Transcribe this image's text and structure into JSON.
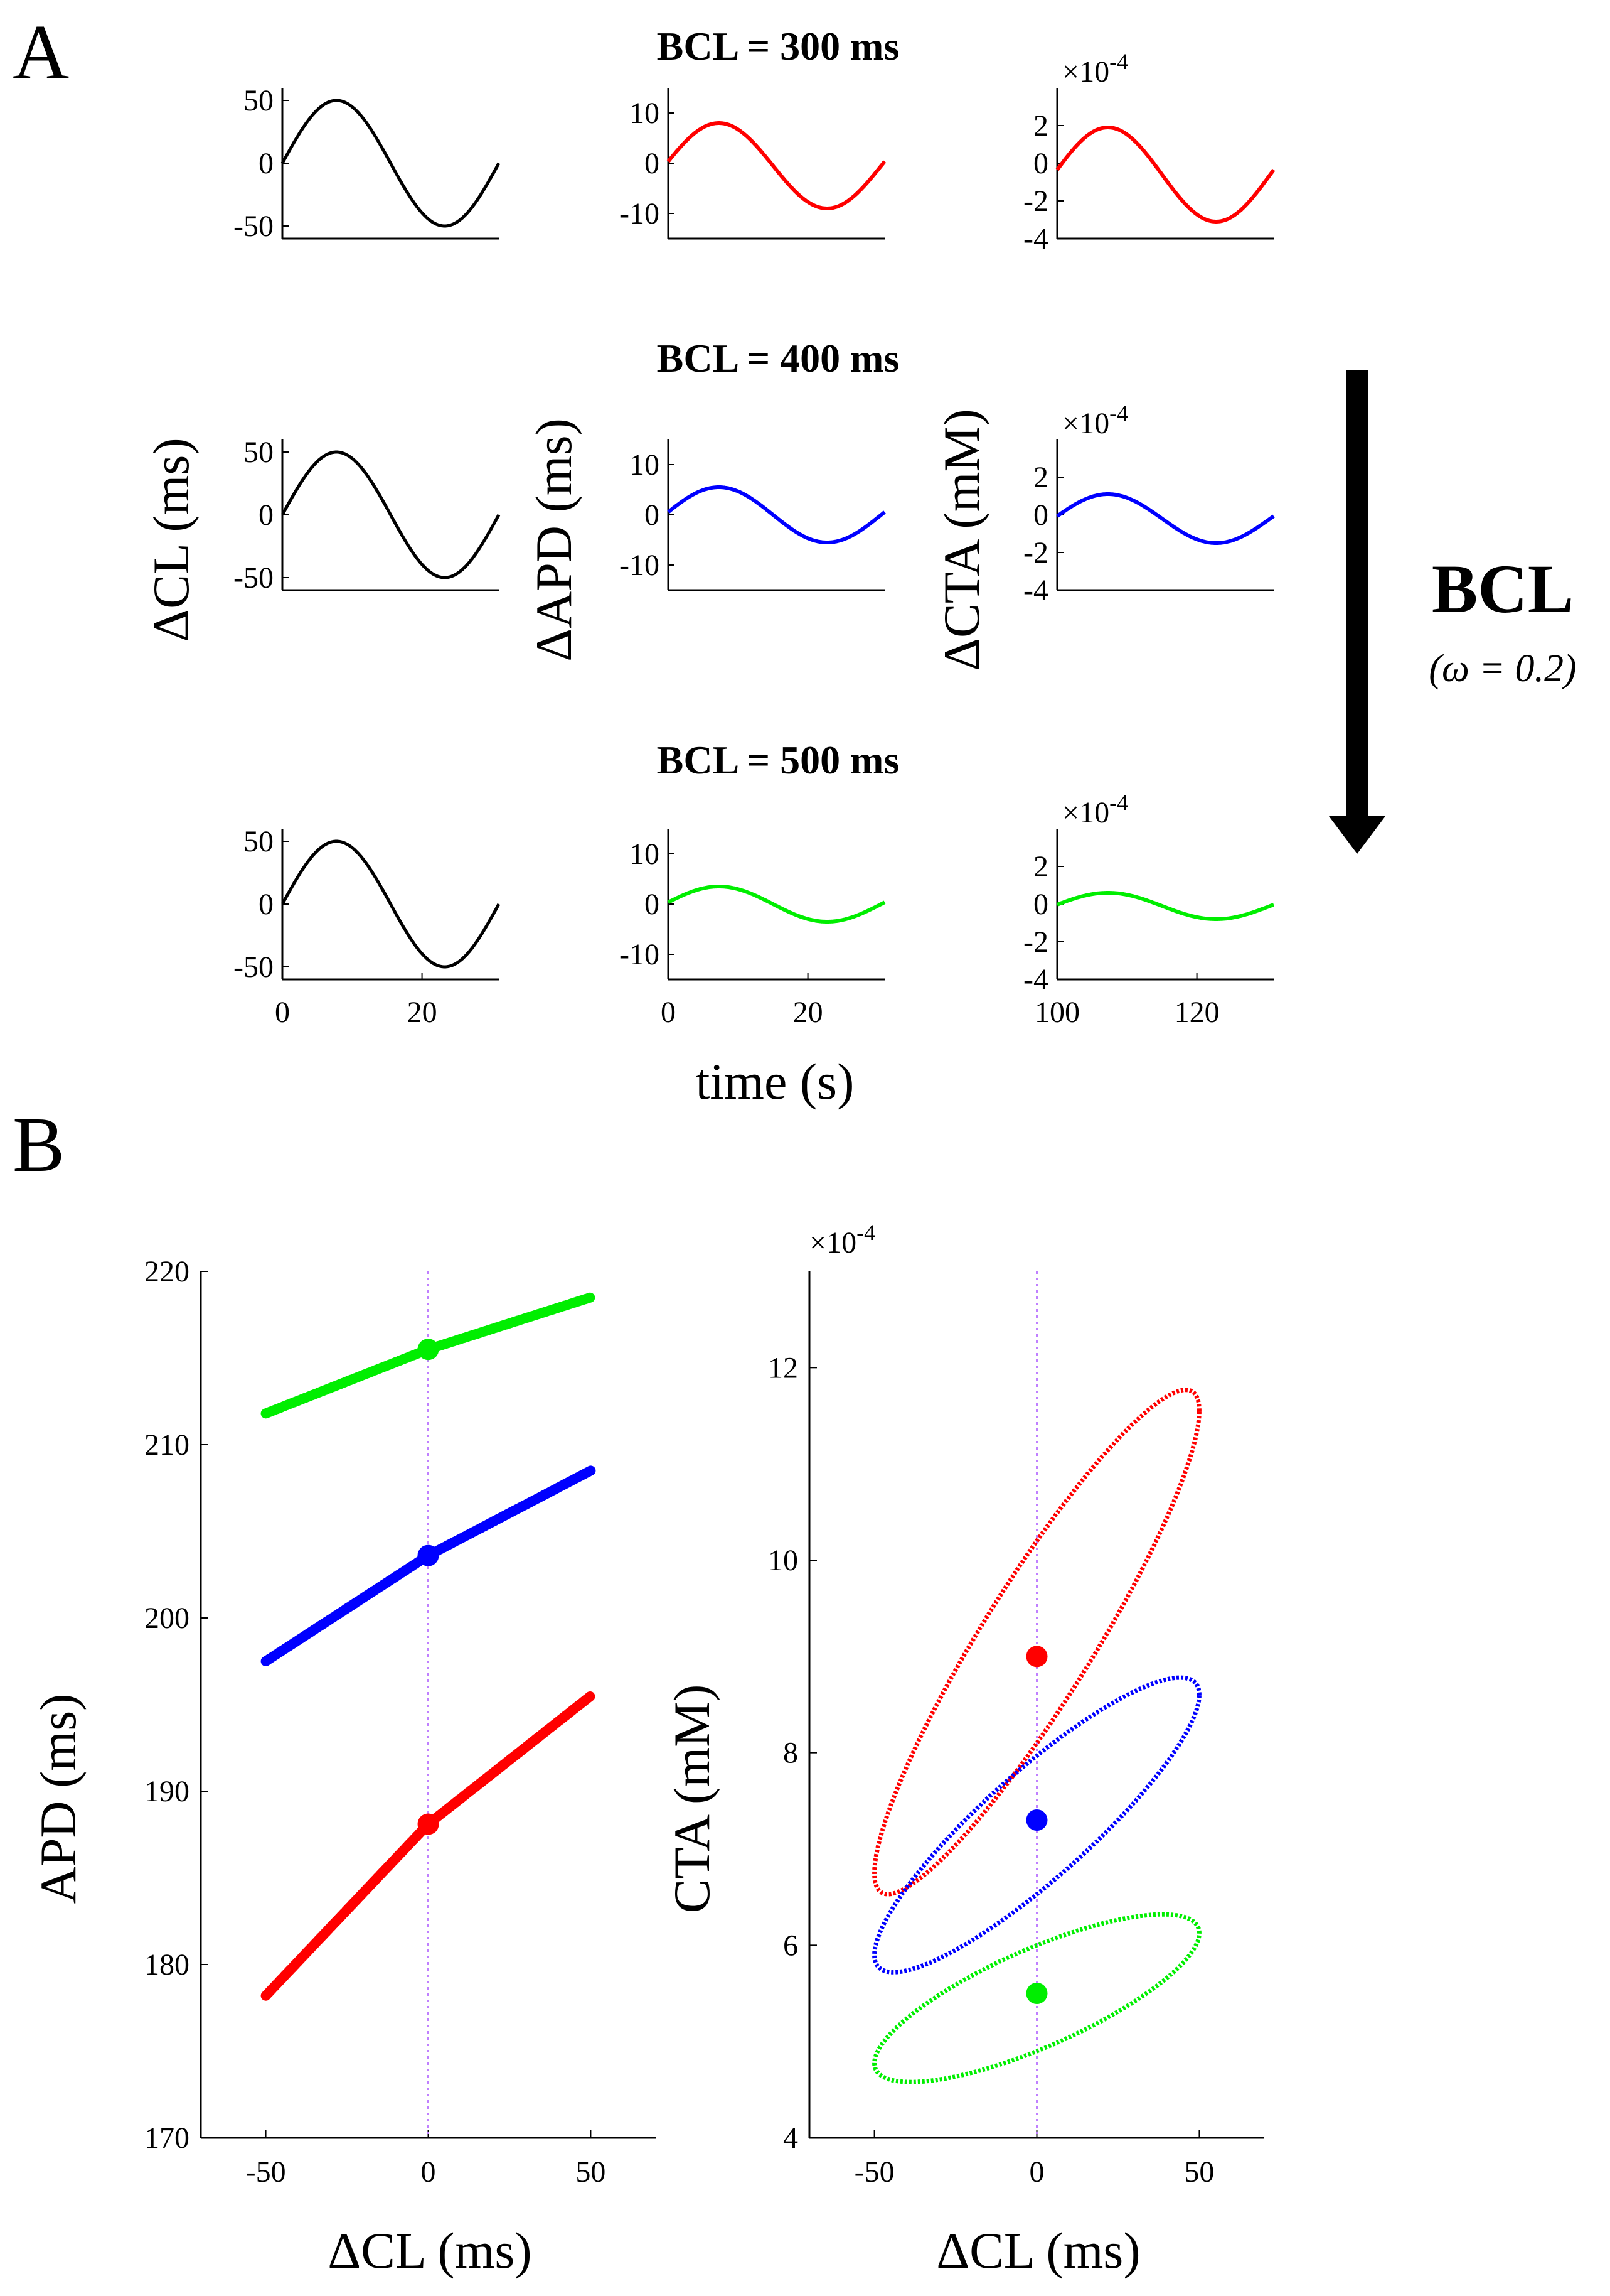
{
  "figure": {
    "panel_a_label": "A",
    "panel_b_label": "B",
    "arrow_label": "BCL",
    "omega_label": "(ω = 0.2)",
    "colors": {
      "black": "#000000",
      "red": "#ff0000",
      "blue": "#0000ff",
      "green": "#00ee00",
      "guide": "#c080ff"
    }
  },
  "panel_a": {
    "row_titles": [
      "BCL = 300 ms",
      "BCL = 400 ms",
      "BCL = 500 ms"
    ],
    "ylabels": [
      "ΔCL (ms)",
      "ΔAPD (ms)",
      "ΔCTA (mM)"
    ],
    "xlabel": "time (s)",
    "exponent_label": "×10",
    "exponent_power": "-4",
    "columns": [
      {
        "xlim": [
          0,
          31
        ],
        "ylim": [
          -60,
          60
        ],
        "yticks": [
          50,
          0,
          -50
        ],
        "xticks": [
          0,
          20
        ]
      },
      {
        "xlim": [
          0,
          31
        ],
        "ylim": [
          -15,
          15
        ],
        "yticks": [
          10,
          0,
          -10
        ],
        "xticks": [
          0,
          20
        ]
      },
      {
        "xlim": [
          100,
          131
        ],
        "ylim": [
          -4,
          4
        ],
        "yticks": [
          2,
          0,
          -2,
          -4
        ],
        "xticks": [
          100,
          120
        ]
      }
    ],
    "traces": [
      [
        {
          "color": "#000000",
          "amplitude": 50,
          "offset": 0,
          "phase": 0
        },
        {
          "color": "#ff0000",
          "amplitude": 8.5,
          "offset": -0.5,
          "phase": 0.1
        },
        {
          "color": "#ff0000",
          "amplitude": 2.5,
          "offset": -0.6,
          "phase": 0.1
        }
      ],
      [
        {
          "color": "#000000",
          "amplitude": 50,
          "offset": 0,
          "phase": 0
        },
        {
          "color": "#0000ff",
          "amplitude": 5.5,
          "offset": 0,
          "phase": 0.1
        },
        {
          "color": "#0000ff",
          "amplitude": 1.3,
          "offset": -0.2,
          "phase": 0.1
        }
      ],
      [
        {
          "color": "#000000",
          "amplitude": 50,
          "offset": 0,
          "phase": 0
        },
        {
          "color": "#00ee00",
          "amplitude": 3.5,
          "offset": 0,
          "phase": 0.1
        },
        {
          "color": "#00ee00",
          "amplitude": 0.7,
          "offset": -0.1,
          "phase": 0.1
        }
      ]
    ]
  },
  "panel_b": {
    "xlabel": "ΔCL (ms)",
    "apd": {
      "ylabel": "APD (ms)",
      "xlim": [
        -70,
        70
      ],
      "ylim": [
        170,
        220
      ],
      "xticks": [
        -50,
        0,
        50
      ],
      "yticks": [
        220,
        210,
        200,
        190,
        180,
        170
      ],
      "series": [
        {
          "color": "#00ee00",
          "x": [
            -50,
            0,
            50
          ],
          "y": [
            211.8,
            215.5,
            218.5
          ],
          "mean": 215.5
        },
        {
          "color": "#0000ff",
          "x": [
            -50,
            0,
            50
          ],
          "y": [
            197.5,
            203.6,
            208.5
          ],
          "mean": 203.6
        },
        {
          "color": "#ff0000",
          "x": [
            -50,
            0,
            50
          ],
          "y": [
            178.2,
            188.1,
            195.5
          ],
          "mean": 188.1
        }
      ]
    },
    "cta": {
      "ylabel": "CTA (mM)",
      "exponent_label": "×10",
      "exponent_power": "-4",
      "xlim": [
        -70,
        70
      ],
      "ylim": [
        4,
        13
      ],
      "xticks": [
        -50,
        0,
        50
      ],
      "yticks": [
        12,
        10,
        8,
        6,
        4
      ],
      "series": [
        {
          "color": "#ff0000",
          "center_y": 9.15,
          "slope": 0.048,
          "half_width": 1.05,
          "mean": 9.0
        },
        {
          "color": "#0000ff",
          "center_y": 7.25,
          "slope": 0.027,
          "half_width": 0.72,
          "mean": 7.3
        },
        {
          "color": "#00ee00",
          "center_y": 5.45,
          "slope": 0.0135,
          "half_width": 0.55,
          "mean": 5.5
        }
      ]
    }
  }
}
